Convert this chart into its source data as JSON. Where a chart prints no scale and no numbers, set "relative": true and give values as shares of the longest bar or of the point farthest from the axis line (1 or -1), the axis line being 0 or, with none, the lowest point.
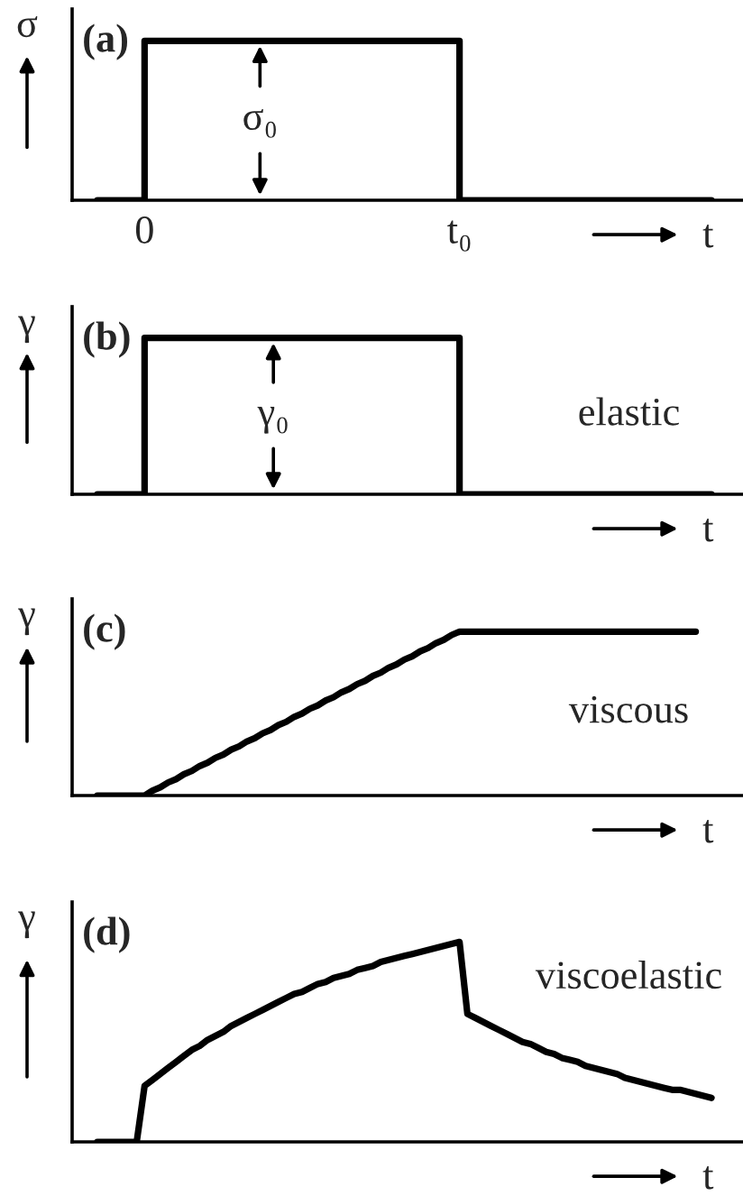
{
  "chart_data": [
    {
      "type": "step",
      "title": "(a)",
      "xlabel": "t",
      "ylabel": "σ",
      "relative": true,
      "tick_labels": "x",
      "categories": [
        null,
        null,
        null,
        null,
        null,
        null,
        "0",
        null,
        null,
        null,
        null,
        null,
        null,
        null,
        null,
        null,
        null,
        null,
        null,
        null,
        null,
        null,
        null,
        null,
        null,
        null,
        null,
        null,
        null,
        null,
        null,
        null,
        null,
        null,
        null,
        null,
        null,
        null,
        null,
        null,
        null,
        null,
        null,
        null,
        null,
        null,
        "t₀",
        null,
        null,
        null,
        null,
        null,
        null,
        null,
        null,
        null,
        null,
        null,
        null,
        null,
        null,
        null,
        null,
        null,
        null,
        null,
        null,
        null,
        null,
        null,
        null,
        null,
        null,
        null,
        null,
        null,
        null,
        null,
        null
      ],
      "series": [
        {
          "color": "#000000",
          "values": [
            0,
            0,
            0,
            0,
            0,
            0,
            1,
            1,
            1,
            1,
            1,
            1,
            1,
            1,
            1,
            1,
            1,
            1,
            1,
            1,
            1,
            1,
            1,
            1,
            1,
            1,
            1,
            1,
            1,
            1,
            1,
            1,
            1,
            1,
            1,
            1,
            1,
            1,
            1,
            1,
            1,
            1,
            1,
            1,
            1,
            1,
            0,
            0,
            0,
            0,
            0,
            0,
            0,
            0,
            0,
            0,
            0,
            0,
            0,
            0,
            0,
            0,
            0,
            0,
            0,
            0,
            0,
            0,
            0,
            0,
            0,
            0,
            0,
            0,
            0,
            0,
            0,
            0,
            0
          ]
        }
      ],
      "annotations": [
        "σ₀"
      ]
    },
    {
      "type": "step",
      "title": "(b)",
      "xlabel": "t",
      "ylabel": "γ",
      "relative": true,
      "tick_labels": false,
      "categories": [
        null,
        null,
        null,
        null,
        null,
        null,
        null,
        null,
        null,
        null,
        null,
        null,
        null,
        null,
        null,
        null,
        null,
        null,
        null,
        null,
        null,
        null,
        null,
        null,
        null,
        null,
        null,
        null,
        null,
        null,
        null,
        null,
        null,
        null,
        null,
        null,
        null,
        null,
        null,
        null,
        null,
        null,
        null,
        null,
        null,
        null,
        null,
        null,
        null,
        null,
        null,
        null,
        null,
        null,
        null,
        null,
        null,
        null,
        null,
        null,
        null,
        null,
        null,
        null,
        null,
        null,
        null,
        null,
        null,
        null,
        null,
        null,
        null,
        null,
        null,
        null,
        null,
        null,
        null
      ],
      "series": [
        {
          "color": "#000000",
          "values": [
            0,
            0,
            0,
            0,
            0,
            0,
            1,
            1,
            1,
            1,
            1,
            1,
            1,
            1,
            1,
            1,
            1,
            1,
            1,
            1,
            1,
            1,
            1,
            1,
            1,
            1,
            1,
            1,
            1,
            1,
            1,
            1,
            1,
            1,
            1,
            1,
            1,
            1,
            1,
            1,
            1,
            1,
            1,
            1,
            1,
            1,
            0,
            0,
            0,
            0,
            0,
            0,
            0,
            0,
            0,
            0,
            0,
            0,
            0,
            0,
            0,
            0,
            0,
            0,
            0,
            0,
            0,
            0,
            0,
            0,
            0,
            0,
            0,
            0,
            0,
            0,
            0,
            0,
            0
          ]
        }
      ],
      "annotations": [
        "γ₀",
        "elastic"
      ]
    },
    {
      "type": "line",
      "title": "(c)",
      "xlabel": "t",
      "ylabel": "γ",
      "relative": true,
      "tick_labels": false,
      "categories": [
        null,
        null,
        null,
        null,
        null,
        null,
        null,
        null,
        null,
        null,
        null,
        null,
        null,
        null,
        null,
        null,
        null,
        null,
        null,
        null,
        null,
        null,
        null,
        null,
        null,
        null,
        null,
        null,
        null,
        null,
        null,
        null,
        null,
        null,
        null,
        null,
        null,
        null,
        null,
        null,
        null,
        null,
        null,
        null,
        null,
        null,
        null,
        null,
        null,
        null,
        null,
        null,
        null,
        null,
        null,
        null,
        null,
        null,
        null,
        null,
        null,
        null,
        null,
        null,
        null,
        null,
        null,
        null,
        null,
        null,
        null,
        null,
        null,
        null,
        null,
        null,
        null,
        null,
        null
      ],
      "series": [
        {
          "color": "#000000",
          "values": [
            0,
            0,
            0,
            0,
            0,
            0,
            0,
            0.03,
            0.05,
            0.08,
            0.1,
            0.13,
            0.15,
            0.18,
            0.2,
            0.23,
            0.25,
            0.28,
            0.3,
            0.33,
            0.35,
            0.38,
            0.4,
            0.43,
            0.45,
            0.48,
            0.5,
            0.53,
            0.55,
            0.58,
            0.6,
            0.63,
            0.65,
            0.68,
            0.7,
            0.73,
            0.75,
            0.78,
            0.8,
            0.83,
            0.85,
            0.88,
            0.9,
            0.93,
            0.95,
            0.98,
            1,
            1,
            1,
            1,
            1,
            1,
            1,
            1,
            1,
            1,
            1,
            1,
            1,
            1,
            1,
            1,
            1,
            1,
            1,
            1,
            1,
            1,
            1,
            1,
            1,
            1,
            1,
            1,
            1,
            1,
            1,
            null,
            null
          ]
        }
      ],
      "annotations": [
        "viscous"
      ]
    },
    {
      "type": "line",
      "title": "(d)",
      "xlabel": "t",
      "ylabel": "γ",
      "relative": true,
      "tick_labels": false,
      "categories": [
        null,
        null,
        null,
        null,
        null,
        null,
        null,
        null,
        null,
        null,
        null,
        null,
        null,
        null,
        null,
        null,
        null,
        null,
        null,
        null,
        null,
        null,
        null,
        null,
        null,
        null,
        null,
        null,
        null,
        null,
        null,
        null,
        null,
        null,
        null,
        null,
        null,
        null,
        null,
        null,
        null,
        null,
        null,
        null,
        null,
        null,
        null,
        null,
        null,
        null,
        null,
        null,
        null,
        null,
        null,
        null,
        null,
        null,
        null,
        null,
        null,
        null,
        null,
        null,
        null,
        null,
        null,
        null,
        null,
        null,
        null,
        null,
        null,
        null,
        null,
        null,
        null,
        null,
        null
      ],
      "series": [
        {
          "color": "#000000",
          "values": [
            0,
            0,
            0,
            0,
            0,
            0,
            0.28,
            0.31,
            0.34,
            0.37,
            0.4,
            0.43,
            0.46,
            0.48,
            0.51,
            0.53,
            0.55,
            0.58,
            0.6,
            0.62,
            0.64,
            0.66,
            0.68,
            0.7,
            0.72,
            0.74,
            0.75,
            0.77,
            0.79,
            0.8,
            0.82,
            0.83,
            0.84,
            0.86,
            0.87,
            0.88,
            0.9,
            0.91,
            0.92,
            0.93,
            0.94,
            0.95,
            0.96,
            0.97,
            0.98,
            0.99,
            1,
            0.64,
            0.62,
            0.6,
            0.58,
            0.56,
            0.54,
            0.52,
            0.5,
            0.49,
            0.47,
            0.45,
            0.44,
            0.42,
            0.41,
            0.4,
            0.38,
            0.37,
            0.36,
            0.35,
            0.34,
            0.32,
            0.31,
            0.3,
            0.29,
            0.28,
            0.27,
            0.26,
            0.26,
            0.25,
            0.24,
            0.23,
            0.22
          ]
        }
      ],
      "annotations": [
        "viscoelastic"
      ]
    }
  ]
}
